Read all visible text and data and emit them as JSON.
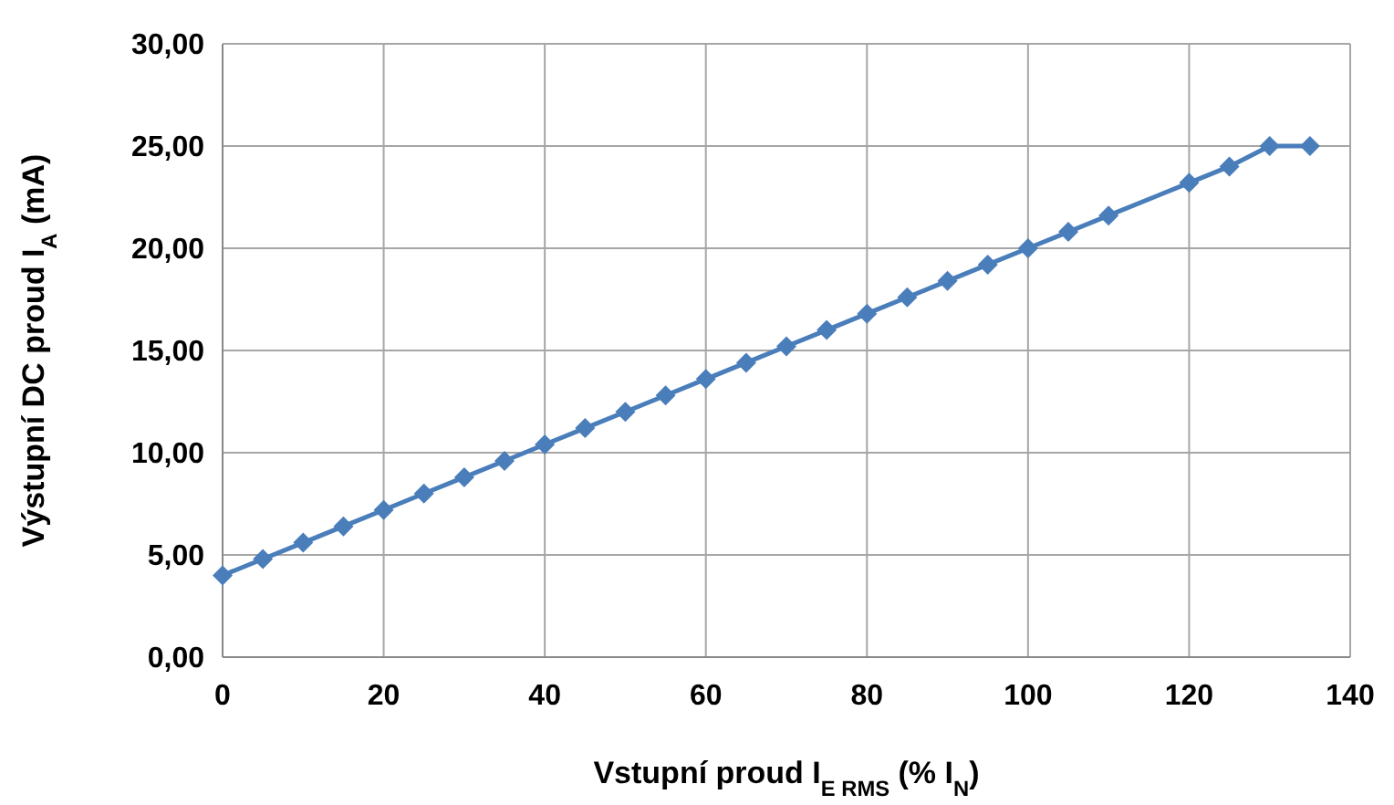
{
  "chart_data": {
    "type": "line",
    "xlabel": "Vstupní proud I$_{E RMS}$ (% I$_{N}$)",
    "ylabel": "Výstupní DC proud I$_{A}$ (mA)",
    "x": [
      0,
      5,
      10,
      15,
      20,
      25,
      30,
      35,
      40,
      45,
      50,
      55,
      60,
      65,
      70,
      75,
      80,
      85,
      90,
      95,
      100,
      105,
      110,
      120,
      125,
      130,
      135
    ],
    "series": [
      {
        "color": "#4a7ebb",
        "values": [
          4,
          4.8,
          5.6,
          6.4,
          7.2,
          8,
          8.8,
          9.6,
          10.4,
          11.2,
          12,
          12.8,
          13.6,
          14.4,
          15.2,
          16,
          16.8,
          17.6,
          18.4,
          19.2,
          20,
          20.8,
          21.6,
          23.2,
          24,
          25,
          25
        ]
      }
    ],
    "xlim": [
      0,
      140
    ],
    "xticks": [
      0,
      20,
      40,
      60,
      80,
      100,
      120,
      140
    ],
    "ylim": [
      0,
      30
    ],
    "yticks": [
      {
        "value": 0,
        "label": "0,00"
      },
      {
        "value": 5,
        "label": "5,00"
      },
      {
        "value": 10,
        "label": "10,00"
      },
      {
        "value": 15,
        "label": "15,00"
      },
      {
        "value": 20,
        "label": "20,00"
      },
      {
        "value": 25,
        "label": "25,00"
      },
      {
        "value": 30,
        "label": "30,00"
      }
    ],
    "grid": true,
    "marker": "diamond",
    "line_style": "solid"
  }
}
